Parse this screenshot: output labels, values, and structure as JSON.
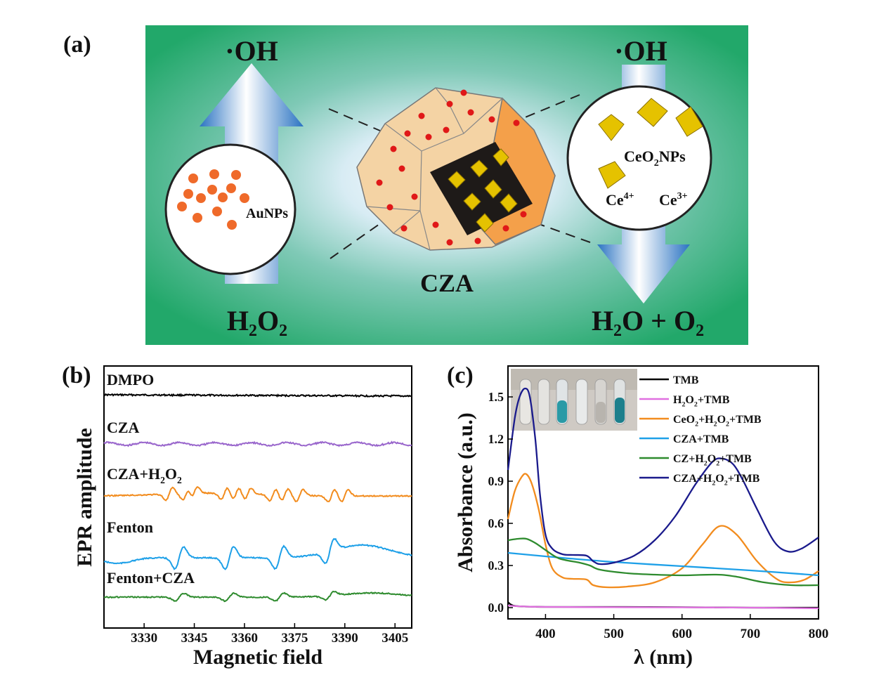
{
  "panels": {
    "a": {
      "label": "(a)",
      "left_top": "·OH",
      "left_bottom": "H₂O₂",
      "right_top": "·OH",
      "right_bottom": "H₂O + O₂",
      "center_label": "CZA",
      "left_circle_label": "AuNPs",
      "right_circle_label_main": "CeO",
      "right_circle_label_sub": "2",
      "right_circle_label_tail": "NPs",
      "ce4": "Ce",
      "ce4_sup": "4+",
      "ce3": "Ce",
      "ce3_sup": "3+"
    },
    "b": {
      "label": "(b)"
    },
    "c": {
      "label": "(c)"
    }
  },
  "chart_data": [
    {
      "panel": "b",
      "type": "line",
      "xlabel": "Magnetic field",
      "ylabel": "EPR amplitude",
      "xlim": [
        3318,
        3410
      ],
      "xticks": [
        3330,
        3345,
        3360,
        3375,
        3390,
        3405
      ],
      "yticks_shown": false,
      "series": [
        {
          "name": "DMPO",
          "color": "#000000",
          "offset": 4,
          "peaks": []
        },
        {
          "name": "CZA",
          "color": "#9966CC",
          "offset": 3,
          "peaks": []
        },
        {
          "name": "CZA+H2O2",
          "name_main": "CZA+H",
          "name_sub": "2",
          "name_tail": "O",
          "name_sub2": "2",
          "color": "#F28C1E",
          "offset": 2,
          "peaks": [
            3337.5,
            3342.5,
            3345,
            3354,
            3357.5,
            3361,
            3368.5,
            3372,
            3376.5,
            3386,
            3390
          ]
        },
        {
          "name": "Fenton",
          "color": "#1EA0E8",
          "offset": 1,
          "peaks": [
            3340.5,
            3355.5,
            3370.5,
            3385.5
          ]
        },
        {
          "name": "Fenton+CZA",
          "color": "#2E8B2E",
          "offset": 0,
          "peaks": [
            3340.5,
            3355.5,
            3370.5,
            3385.5
          ]
        }
      ]
    },
    {
      "panel": "c",
      "type": "line",
      "xlabel": "λ (nm)",
      "ylabel": "Absorbance (a.u.)",
      "xlim": [
        345,
        800
      ],
      "ylim": [
        -0.08,
        1.72
      ],
      "xticks": [
        400,
        500,
        600,
        700,
        800
      ],
      "yticks": [
        0.0,
        0.3,
        0.6,
        0.9,
        1.2,
        1.5
      ],
      "ytick_labels": [
        "0.0",
        "0.3",
        "0.6",
        "0.9",
        "1.2",
        "1.5"
      ],
      "legend_position": "top-right",
      "series": [
        {
          "name": "TMB",
          "color": "#000000",
          "x": [
            345,
            350,
            360,
            400,
            500,
            600,
            700,
            800
          ],
          "y": [
            0.04,
            0.02,
            0.01,
            0.005,
            0.005,
            0.003,
            0.0,
            0.0
          ]
        },
        {
          "name": "H2O2+TMB",
          "name_main": "H",
          "name_sub": "2",
          "name_tail": "O",
          "name_sub2": "2",
          "name_tail2": "+TMB",
          "color": "#E070E0",
          "x": [
            345,
            360,
            400,
            500,
            600,
            700,
            800
          ],
          "y": [
            0.015,
            0.01,
            0.005,
            0.003,
            0.002,
            0.0,
            -0.005
          ]
        },
        {
          "name": "CeO2+H2O2+TMB",
          "name_main": "CeO",
          "name_sub": "2",
          "name_tail": "+H",
          "name_sub2": "2",
          "name_tail2": "O",
          "name_sub3": "2",
          "name_tail3": "+TMB",
          "color": "#F28C1E",
          "x": [
            345,
            355,
            365,
            372,
            380,
            390,
            400,
            410,
            425,
            440,
            460,
            470,
            490,
            520,
            560,
            600,
            630,
            655,
            680,
            710,
            740,
            760,
            780,
            800
          ],
          "y": [
            0.63,
            0.83,
            0.93,
            0.95,
            0.88,
            0.7,
            0.45,
            0.28,
            0.215,
            0.205,
            0.2,
            0.16,
            0.145,
            0.15,
            0.18,
            0.28,
            0.45,
            0.58,
            0.52,
            0.33,
            0.2,
            0.18,
            0.2,
            0.26
          ]
        },
        {
          "name": "CZA+TMB",
          "color": "#1EA0E8",
          "x": [
            345,
            400,
            500,
            600,
            700,
            800
          ],
          "y": [
            0.39,
            0.365,
            0.325,
            0.295,
            0.265,
            0.23
          ]
        },
        {
          "name": "CZ+H2O2+TMB",
          "name_main": "CZ+H",
          "name_sub": "2",
          "name_tail": "O",
          "name_sub2": "2",
          "name_tail2": "+TMB",
          "color": "#2E8B2E",
          "x": [
            345,
            360,
            372,
            385,
            400,
            420,
            450,
            465,
            480,
            520,
            560,
            600,
            650,
            680,
            720,
            760,
            800
          ],
          "y": [
            0.48,
            0.49,
            0.49,
            0.46,
            0.41,
            0.35,
            0.32,
            0.3,
            0.27,
            0.245,
            0.235,
            0.23,
            0.235,
            0.22,
            0.18,
            0.16,
            0.16
          ]
        },
        {
          "name": "CZA+H2O2+TMB",
          "name_main": "CZA+H",
          "name_sub": "2",
          "name_tail": "O",
          "name_sub2": "2",
          "name_tail2": "+TMB",
          "color": "#1A1A8C",
          "x": [
            345,
            355,
            362,
            370,
            377,
            385,
            392,
            400,
            410,
            425,
            440,
            460,
            470,
            480,
            500,
            530,
            560,
            590,
            620,
            645,
            660,
            675,
            690,
            710,
            735,
            755,
            775,
            800
          ],
          "y": [
            0.98,
            1.35,
            1.5,
            1.56,
            1.5,
            1.2,
            0.8,
            0.52,
            0.42,
            0.38,
            0.375,
            0.37,
            0.33,
            0.31,
            0.32,
            0.37,
            0.48,
            0.65,
            0.88,
            1.04,
            1.06,
            1.02,
            0.9,
            0.7,
            0.47,
            0.4,
            0.42,
            0.5
          ]
        }
      ]
    }
  ]
}
